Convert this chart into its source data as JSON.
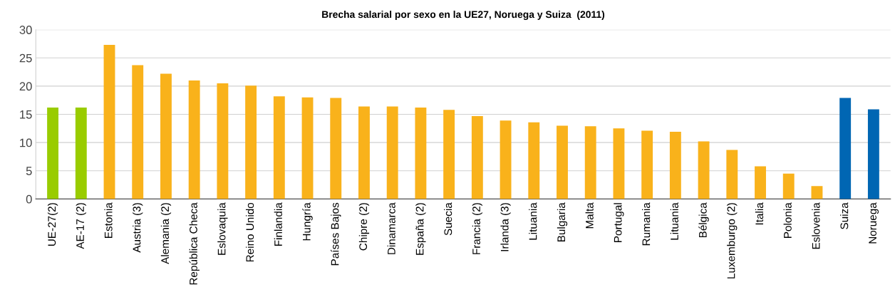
{
  "chart_data": {
    "type": "bar",
    "title": "Brecha salarial por sexo en la UE27, Noruega y Suiza  (2011)",
    "categories": [
      "UE-27(2)",
      "AE-17 (2)",
      "Estonia",
      "Austria (3)",
      "Alemania (2)",
      "República Checa",
      "Eslovaquia",
      "Reino Unido",
      "Finlandia",
      "Hungría",
      "Países Bajos",
      "Chipre (2)",
      "Dinamarca",
      "España (2)",
      "Suecia",
      "Francia (2)",
      "Irlanda (3)",
      "Lituania",
      "Bulgaria",
      "Malta",
      "Portugal",
      "Rumania",
      "Lituania",
      "Bélgica",
      "Luxemburgo (2)",
      "Italia",
      "Polonia",
      "Eslovenia",
      "Suiza",
      "Noruega"
    ],
    "values": [
      16.2,
      16.2,
      27.3,
      23.7,
      22.2,
      21.0,
      20.5,
      20.1,
      18.2,
      18.0,
      17.9,
      16.4,
      16.4,
      16.2,
      15.8,
      14.7,
      13.9,
      13.6,
      13.0,
      12.9,
      12.5,
      12.1,
      11.9,
      10.2,
      8.7,
      5.8,
      4.5,
      2.3,
      17.9,
      15.9
    ],
    "colors": [
      "#99cc00",
      "#99cc00",
      "#f9b21b",
      "#f9b21b",
      "#f9b21b",
      "#f9b21b",
      "#f9b21b",
      "#f9b21b",
      "#f9b21b",
      "#f9b21b",
      "#f9b21b",
      "#f9b21b",
      "#f9b21b",
      "#f9b21b",
      "#f9b21b",
      "#f9b21b",
      "#f9b21b",
      "#f9b21b",
      "#f9b21b",
      "#f9b21b",
      "#f9b21b",
      "#f9b21b",
      "#f9b21b",
      "#f9b21b",
      "#f9b21b",
      "#f9b21b",
      "#f9b21b",
      "#f9b21b",
      "#0066b3",
      "#0066b3"
    ],
    "ylim": [
      0,
      30
    ],
    "yticks": [
      0,
      5,
      10,
      15,
      20,
      25,
      30
    ],
    "grid": "y"
  }
}
